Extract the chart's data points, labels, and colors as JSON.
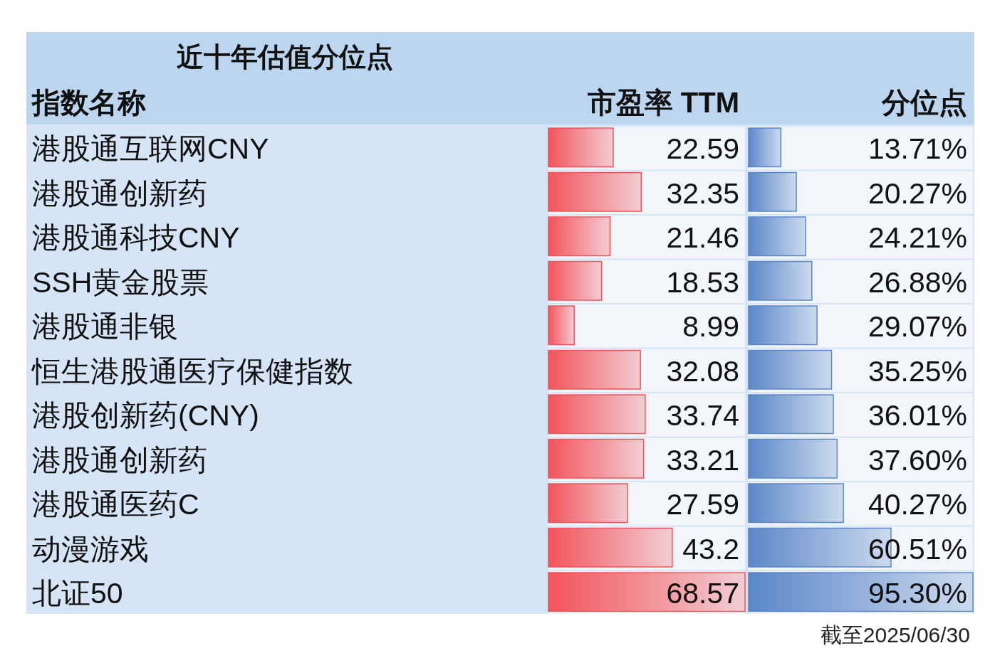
{
  "chart_data": [
    {
      "type": "bar",
      "orientation": "horizontal",
      "title": "近十年估值分位点",
      "ylabel": "指数名称",
      "subtitle": "市盈率 TTM",
      "color": "#f2545b",
      "data_labels": true,
      "categories": [
        "港股通互联网CNY",
        "港股通创新药",
        "港股通科技CNY",
        "SSH黄金股票",
        "港股通非银",
        "恒生港股通医疗保健指数",
        "港股创新药(CNY)",
        "港股通创新药",
        "港股通医药C",
        "动漫游戏",
        "北证50"
      ],
      "values": [
        22.59,
        32.35,
        21.46,
        18.53,
        8.99,
        32.08,
        33.74,
        33.21,
        27.59,
        43.2,
        68.57
      ]
    },
    {
      "type": "bar",
      "orientation": "horizontal",
      "subtitle": "分位点",
      "color": "#5b87c8",
      "values": [
        13.71,
        20.27,
        24.21,
        26.88,
        29.07,
        35.25,
        36.01,
        37.6,
        40.27,
        60.51,
        95.3
      ],
      "value_labels": [
        "13.71%",
        "20.27%",
        "24.21%",
        "26.88%",
        "29.07%",
        "35.25%",
        "36.01%",
        "37.60%",
        "40.27%",
        "60.51%",
        "95.30%"
      ],
      "annotations": [
        "截至2025/06/30"
      ]
    }
  ]
}
